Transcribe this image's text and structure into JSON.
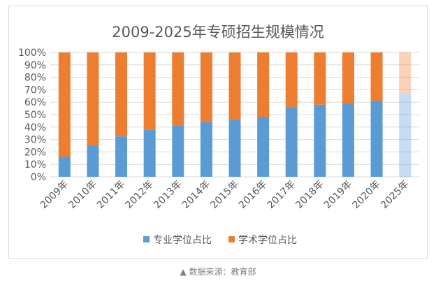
{
  "chart_data": {
    "type": "bar",
    "stacked": true,
    "title": "2009-2025年专硕招生规模情况",
    "categories": [
      "2009年",
      "2010年",
      "2011年",
      "2012年",
      "2013年",
      "2014年",
      "2015年",
      "2016年",
      "2017年",
      "2018年",
      "2019年",
      "2020年",
      "2025年"
    ],
    "series": [
      {
        "name": "专业学位占比",
        "color": "#5b9bd5",
        "values": [
          16,
          25,
          32.5,
          38,
          41.5,
          44,
          46,
          48,
          56,
          58,
          59,
          61,
          67
        ]
      },
      {
        "name": "学术学位占比",
        "color": "#ed7d31",
        "values": [
          84,
          75,
          67.5,
          62,
          58.5,
          56,
          54,
          52,
          44,
          42,
          41,
          39,
          33
        ]
      }
    ],
    "projected_category": "2025年",
    "yticks": [
      "0%",
      "10%",
      "20%",
      "30%",
      "40%",
      "50%",
      "60%",
      "70%",
      "80%",
      "90%",
      "100%"
    ],
    "ylim": [
      0,
      100
    ],
    "grid": true,
    "legend": "bottom"
  },
  "caption": "▲ 数据来源：教育部"
}
